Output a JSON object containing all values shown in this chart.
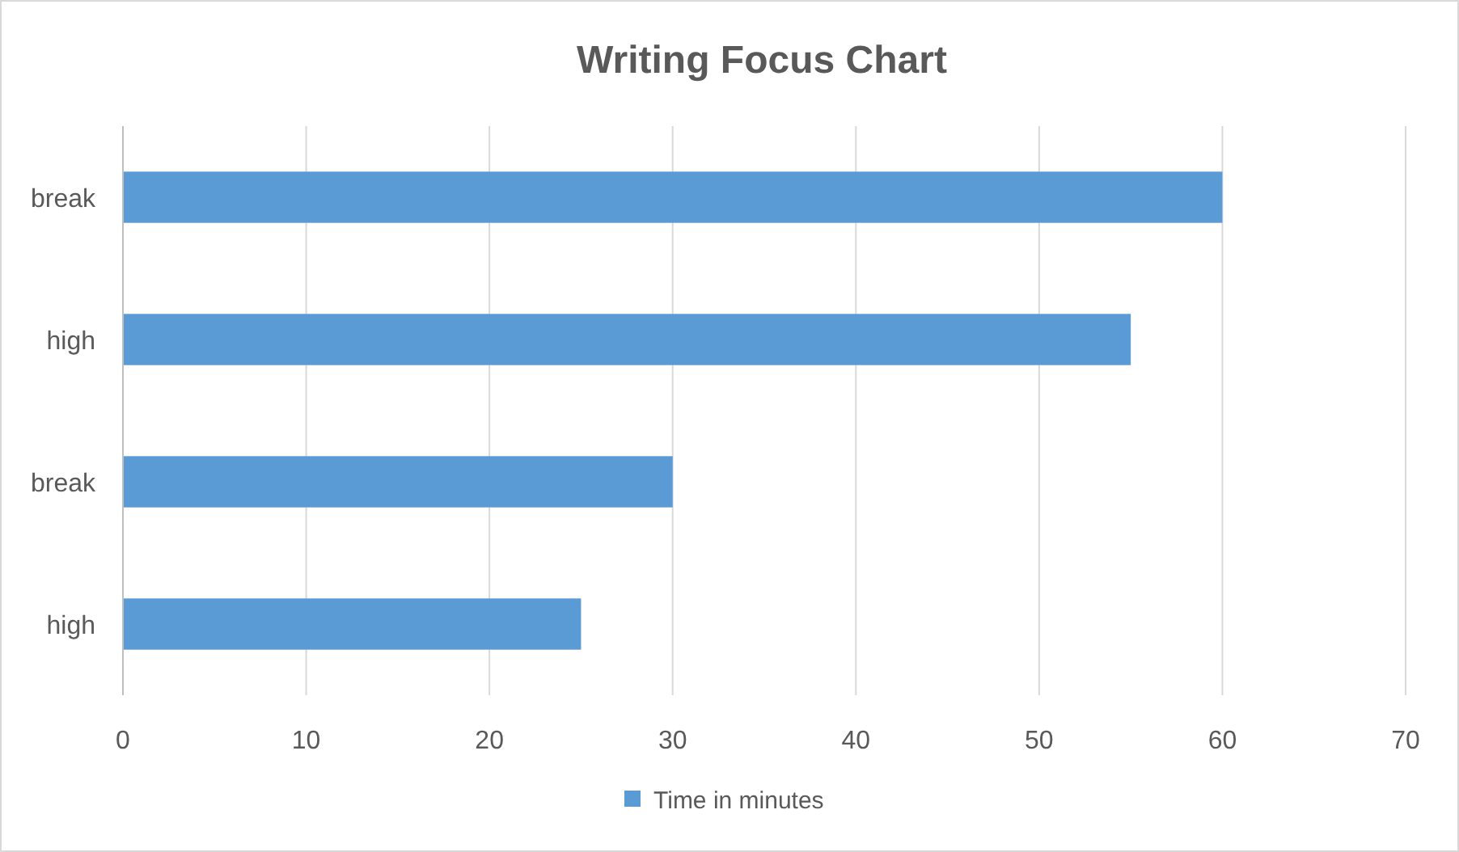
{
  "chart_data": {
    "type": "bar",
    "orientation": "horizontal",
    "title": "Writing Focus Chart",
    "categories": [
      "break",
      "high",
      "break",
      "high"
    ],
    "series": [
      {
        "name": "Time in minutes",
        "color": "#5b9bd5",
        "values": [
          60,
          55,
          30,
          25
        ]
      }
    ],
    "xlim": [
      0,
      70
    ],
    "xticks": [
      0,
      10,
      20,
      30,
      40,
      50,
      60,
      70
    ],
    "grid": "x",
    "legend": "bottom"
  }
}
